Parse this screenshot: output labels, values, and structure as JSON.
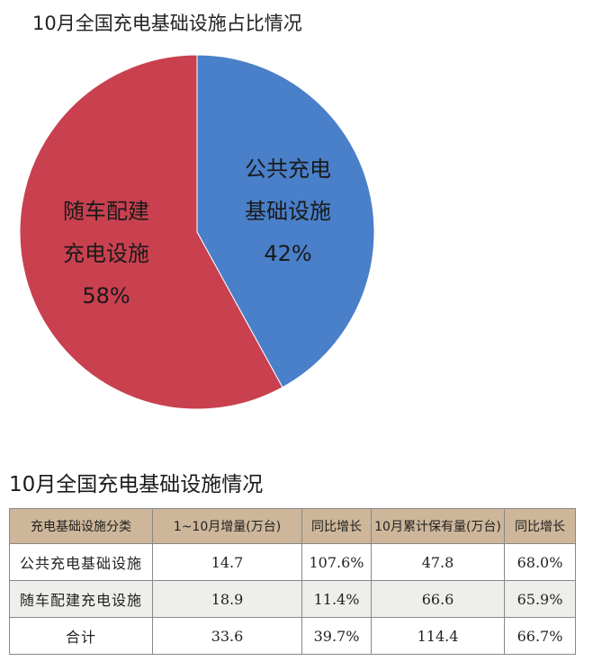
{
  "chart_data": {
    "type": "pie",
    "title": "10月全国充电基础设施占比情况",
    "slices": [
      {
        "label_lines": [
          "公共充电",
          "基础设施"
        ],
        "value": 42,
        "value_label": "42%",
        "color": "#4a7fc9"
      },
      {
        "label_lines": [
          "随车配建",
          "充电设施"
        ],
        "value": 58,
        "value_label": "58%",
        "color": "#c9404f"
      }
    ]
  },
  "table": {
    "title": "10月全国充电基础设施情况",
    "header_bg": "#cdb69a",
    "columns": [
      "充电基础设施分类",
      "1~10月增量(万台)",
      "同比增长",
      "10月累计保有量(万台)",
      "同比增长"
    ],
    "rows": [
      [
        "公共充电基础设施",
        "14.7",
        "107.6%",
        "47.8",
        "68.0%"
      ],
      [
        "随车配建充电设施",
        "18.9",
        "11.4%",
        "66.6",
        "65.9%"
      ],
      [
        "合计",
        "33.6",
        "39.7%",
        "114.4",
        "66.7%"
      ]
    ]
  }
}
